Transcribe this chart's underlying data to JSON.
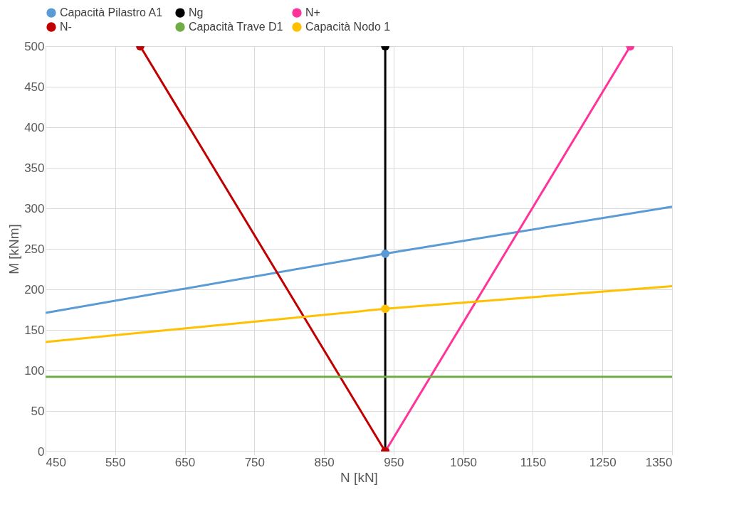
{
  "chart_data": {
    "type": "line",
    "xlabel": "N [kN]",
    "ylabel": "M [kNm]",
    "xlim": [
      450,
      1350
    ],
    "ylim": [
      0,
      500
    ],
    "xticks": [
      450,
      550,
      650,
      750,
      850,
      950,
      1050,
      1150,
      1250,
      1350
    ],
    "yticks": [
      0,
      50,
      100,
      150,
      200,
      250,
      300,
      350,
      400,
      450,
      500
    ],
    "grid": true,
    "legend": "top",
    "series": [
      {
        "name": "Capacità Pilastro  A1",
        "color": "#5b9bd5",
        "x": [
          450,
          938,
          1350
        ],
        "values": [
          171,
          244,
          302
        ],
        "marker": "none"
      },
      {
        "name": "Ng",
        "color": "#000000",
        "x": [
          938,
          938
        ],
        "values": [
          0,
          500
        ],
        "marker": "circle"
      },
      {
        "name": "N+",
        "color": "#ff3399",
        "x": [
          938,
          1290
        ],
        "values": [
          0,
          500
        ],
        "marker": "circle"
      },
      {
        "name": "N-",
        "color": "#c00000",
        "x": [
          938,
          586
        ],
        "values": [
          0,
          500
        ],
        "marker": "circle"
      },
      {
        "name": "Capacità Trave D1",
        "color": "#70ad47",
        "x": [
          450,
          1350
        ],
        "values": [
          92,
          92
        ],
        "marker": "none"
      },
      {
        "name": "Capacità Nodo 1",
        "color": "#ffc000",
        "x": [
          450,
          938,
          1350
        ],
        "values": [
          135,
          176,
          204
        ],
        "marker": "none"
      },
      {
        "type": "scatter",
        "color": "#5b9bd5",
        "x": [
          938
        ],
        "values": [
          244
        ],
        "marker": "circle"
      },
      {
        "type": "scatter",
        "color": "#ffc000",
        "x": [
          938
        ],
        "values": [
          176
        ],
        "marker": "circle"
      }
    ]
  }
}
